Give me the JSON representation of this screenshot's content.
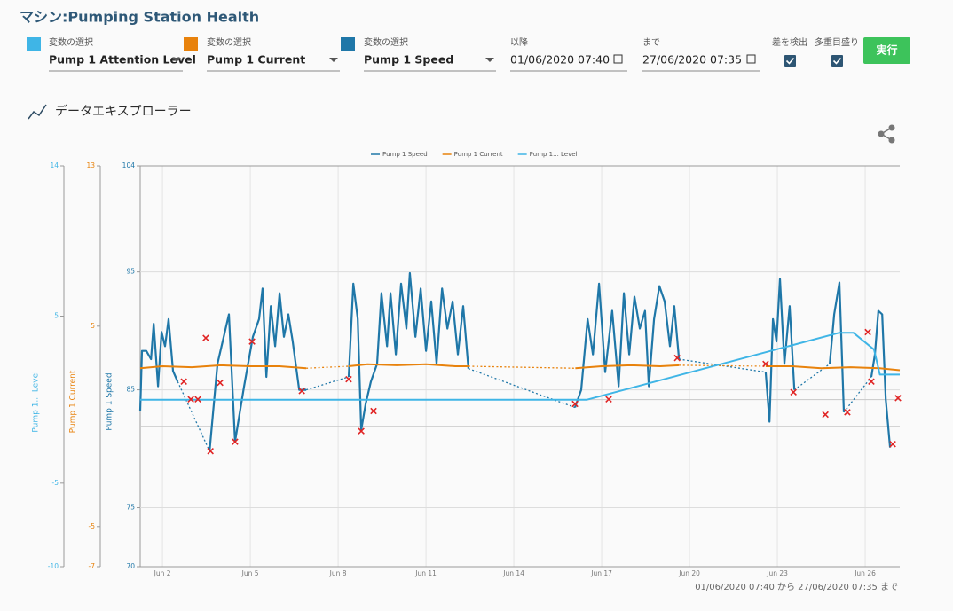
{
  "header": {
    "title": "マシン:Pumping Station Health"
  },
  "controls": {
    "variables": [
      {
        "label": "変数の選択",
        "value": "Pump 1 Attention Level",
        "color": "#3fb5e6"
      },
      {
        "label": "変数の選択",
        "value": "Pump 1 Current",
        "color": "#e8820c"
      },
      {
        "label": "変数の選択",
        "value": "Pump 1 Speed",
        "color": "#1f77a8"
      }
    ],
    "from": {
      "label": "以降",
      "value": "01/06/2020 07:40"
    },
    "to": {
      "label": "まで",
      "value": "27/06/2020 07:35"
    },
    "checkboxes": [
      {
        "label": "差を検出",
        "checked": true
      },
      {
        "label": "多重目盛り",
        "checked": true
      }
    ],
    "button": "実行"
  },
  "section_title": "データエキスプローラー",
  "chart_data": {
    "type": "line",
    "xlim": [
      1.24,
      27.18
    ],
    "xticks": [
      {
        "value": 2,
        "label": "Jun 2"
      },
      {
        "value": 5,
        "label": "Jun 5"
      },
      {
        "value": 8,
        "label": "Jun 8"
      },
      {
        "value": 11,
        "label": "Jun 11"
      },
      {
        "value": 14,
        "label": "Jun 14"
      },
      {
        "value": 17,
        "label": "Jun 17"
      },
      {
        "value": 20,
        "label": "Jun 20"
      },
      {
        "value": 23,
        "label": "Jun 23"
      },
      {
        "value": 26,
        "label": "Jun 26"
      }
    ],
    "ylim": [
      70,
      104
    ],
    "yticks": [
      104,
      95,
      85,
      75,
      70
    ],
    "y2lim": [
      -7,
      13
    ],
    "y2ticks": [
      13,
      5,
      -5,
      -7
    ],
    "y3lim": [
      -10,
      14
    ],
    "y3ticks": [
      14,
      5,
      -5,
      -10
    ],
    "grid": true,
    "series": [
      {
        "name": "Pump 1 Speed",
        "color": "#1f77a8",
        "axis": "y",
        "x": [
          1.24,
          1.3,
          1.45,
          1.61,
          1.7,
          1.85,
          1.97,
          2.09,
          2.21,
          2.36,
          2.52,
          3.0,
          3.61,
          3.88,
          4.27,
          4.48,
          4.79,
          5.09,
          5.3,
          5.42,
          5.55,
          5.7,
          5.85,
          6.0,
          6.15,
          6.3,
          6.45,
          6.67,
          6.91,
          7.6,
          8.36,
          8.52,
          8.67,
          8.79,
          8.94,
          9.12,
          9.33,
          9.48,
          9.67,
          9.79,
          9.97,
          10.15,
          10.33,
          10.45,
          10.64,
          10.82,
          11.0,
          11.18,
          11.36,
          11.55,
          11.73,
          11.91,
          12.09,
          12.27,
          12.45,
          14.3,
          16.09,
          16.3,
          16.52,
          16.7,
          16.91,
          17.12,
          17.36,
          17.58,
          17.76,
          17.94,
          18.12,
          18.3,
          18.48,
          18.61,
          18.79,
          18.97,
          19.15,
          19.33,
          19.48,
          19.64,
          21.1,
          22.6,
          22.73,
          22.85,
          22.97,
          23.09,
          23.24,
          23.42,
          23.58,
          24.2,
          24.79,
          24.94,
          25.12,
          25.27,
          25.8,
          26.21,
          26.33,
          26.45,
          26.58,
          26.7,
          26.85
        ],
        "values": [
          83.2,
          88.3,
          88.3,
          87.6,
          90.6,
          85.3,
          89.9,
          88.7,
          91,
          86.6,
          85.7,
          null,
          79.8,
          87.2,
          91.4,
          80.6,
          85.3,
          89.5,
          91,
          93.6,
          86.1,
          92.1,
          88.7,
          93.2,
          89.5,
          91.4,
          89.1,
          85,
          85,
          null,
          86.1,
          94,
          91,
          81.6,
          83.8,
          85.7,
          87.2,
          93.2,
          88.7,
          93.2,
          88,
          94,
          90.2,
          94.9,
          89.5,
          93.6,
          88.3,
          92.5,
          87.2,
          93.6,
          90.2,
          92.5,
          88,
          92.1,
          86.8,
          null,
          83.5,
          85,
          91,
          88,
          94,
          86.5,
          91.7,
          85.3,
          93.2,
          88,
          92.9,
          90.2,
          91.7,
          85.3,
          91,
          93.8,
          92.5,
          88.7,
          92.1,
          87.6,
          null,
          86.5,
          82.3,
          91,
          89.1,
          94.4,
          87.2,
          92.1,
          85,
          null,
          87.2,
          91.4,
          94.1,
          83.1,
          null,
          86.1,
          88,
          91.7,
          91.4,
          84.2,
          80.1
        ]
      },
      {
        "name": "Pump 1 Current",
        "color": "#e8820c",
        "axis": "y2",
        "x": [
          1.24,
          2,
          3,
          4,
          5,
          6,
          6.91,
          7.6,
          8.36,
          9,
          10,
          11,
          12,
          12.45,
          14.3,
          16.1,
          17,
          18,
          19,
          19.64,
          21.1,
          22.6,
          23.5,
          24.5,
          25.5,
          26.5,
          27.18
        ],
        "values": [
          2.9,
          3.0,
          2.95,
          3.05,
          3.0,
          3.0,
          2.9,
          null,
          3.0,
          3.1,
          3.05,
          3.1,
          3.0,
          3.0,
          null,
          2.9,
          3.0,
          3.05,
          3.0,
          3.05,
          null,
          3.0,
          3.0,
          2.9,
          2.95,
          2.9,
          2.8
        ]
      },
      {
        "name": "Pump 1... Level",
        "color": "#3fb5e6",
        "axis": "y3",
        "x": [
          1.24,
          2.9,
          16.5,
          25.1,
          25.6,
          26.3,
          26.5,
          27.18
        ],
        "values": [
          0,
          0,
          0,
          4,
          4,
          3,
          1.5,
          1.5
        ]
      }
    ],
    "anomalies": {
      "color": "#e02424",
      "x": [
        2.73,
        2.97,
        3.21,
        3.48,
        3.64,
        3.97,
        4.48,
        5.06,
        6.76,
        8.36,
        8.79,
        9.21,
        16.09,
        17.24,
        19.58,
        22.6,
        23.55,
        24.64,
        25.39,
        26.09,
        26.21,
        26.94,
        27.12
      ],
      "values": [
        85.7,
        84.2,
        84.2,
        89.4,
        79.8,
        85.6,
        80.6,
        89.1,
        84.9,
        85.9,
        81.5,
        83.2,
        83.8,
        84.2,
        87.7,
        87.2,
        84.8,
        82.9,
        83.1,
        89.9,
        85.7,
        80.4,
        84.3
      ]
    }
  },
  "footer": "01/06/2020 07:40 から 27/06/2020 07:35 まで"
}
